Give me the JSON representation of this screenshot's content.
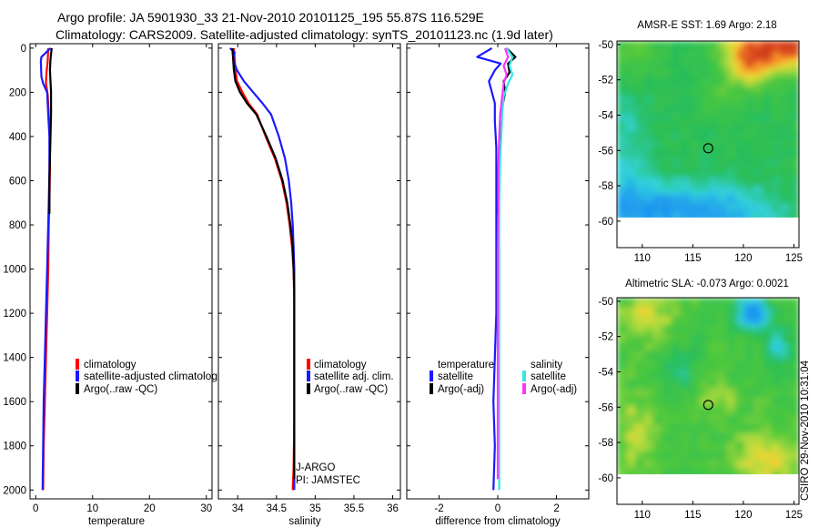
{
  "header": {
    "line1": "Argo profile: JA 5901930_33 21-Nov-2010 20101125_195 55.87S 116.529E",
    "line2": "Climatology: CARS2009. Satellite-adjusted climatology: synTS_20101123.nc (1.9d later)"
  },
  "side_stamp": "CSIRO 29-Nov-2010 10:31:04",
  "colors": {
    "climatology": "#ff0000",
    "satellite": "#1a1aff",
    "argo": "#000000",
    "satellite_salinity": "#33e6e6",
    "argo_salinity": "#ff33ff"
  },
  "chart_data": [
    {
      "type": "line",
      "name": "temperature-profile",
      "xlabel": "temperature",
      "ylabel": "",
      "xlim": [
        -1,
        31
      ],
      "ylim": [
        2040,
        -20
      ],
      "x_ticks": [
        0,
        10,
        20,
        30
      ],
      "y_ticks": [
        0,
        200,
        400,
        600,
        800,
        1000,
        1200,
        1400,
        1600,
        1800,
        2000
      ],
      "series": [
        {
          "name": "climatology",
          "color": "#ff0000",
          "x": [
            2.2,
            2.1,
            1.9,
            1.8,
            2.1,
            2.3,
            2.5,
            2.5,
            2.4,
            2.3,
            2.2,
            2.0,
            1.8,
            1.6,
            1.4,
            1.3
          ],
          "y": [
            0,
            60,
            110,
            160,
            210,
            300,
            400,
            550,
            700,
            800,
            1000,
            1200,
            1400,
            1600,
            1800,
            2000
          ]
        },
        {
          "name": "satellite-adjusted climatology",
          "color": "#1a1aff",
          "x": [
            2.6,
            1.0,
            0.9,
            1.0,
            1.3,
            2.0,
            2.2,
            2.4,
            2.4,
            2.3,
            2.2,
            2.0,
            1.8,
            1.6,
            1.4,
            1.2
          ],
          "y": [
            0,
            40,
            60,
            130,
            160,
            200,
            300,
            400,
            550,
            700,
            800,
            1000,
            1200,
            1400,
            1600,
            2000
          ]
        },
        {
          "name": "Argo(..raw -QC)",
          "color": "#000000",
          "x": [
            2.8,
            2.6,
            2.5,
            2.6,
            2.7,
            2.7,
            2.6,
            2.5,
            2.4,
            2.4
          ],
          "y": [
            0,
            50,
            100,
            150,
            200,
            300,
            400,
            500,
            600,
            750
          ]
        }
      ],
      "legend": [
        "climatology",
        "satellite-adjusted climatolog",
        "Argo(..raw -QC)"
      ]
    },
    {
      "type": "line",
      "name": "salinity-profile",
      "xlabel": "salinity",
      "xlim": [
        33.75,
        36.1
      ],
      "ylim": [
        2040,
        -20
      ],
      "x_ticks": [
        34,
        34.5,
        35,
        35.5,
        36
      ],
      "x_tick_labels": [
        "34",
        "34.5",
        "35",
        "35.5",
        "36"
      ],
      "series": [
        {
          "name": "climatology",
          "color": "#ff0000",
          "x": [
            33.95,
            33.96,
            33.97,
            33.99,
            34.06,
            34.14,
            34.25,
            34.36,
            34.48,
            34.57,
            34.63,
            34.67,
            34.7,
            34.72,
            34.73,
            34.73,
            34.73,
            34.73,
            34.72,
            34.71
          ],
          "y": [
            0,
            50,
            100,
            150,
            200,
            250,
            300,
            400,
            500,
            600,
            700,
            800,
            900,
            1000,
            1150,
            1300,
            1500,
            1700,
            1900,
            2000
          ]
        },
        {
          "name": "satellite adj. clim.",
          "color": "#1a1aff",
          "x": [
            33.9,
            33.96,
            33.94,
            33.99,
            34.08,
            34.2,
            34.32,
            34.43,
            34.53,
            34.61,
            34.66,
            34.69,
            34.71,
            34.72,
            34.73,
            34.73,
            34.73,
            34.73,
            34.73,
            34.73
          ],
          "y": [
            0,
            20,
            50,
            100,
            150,
            200,
            250,
            300,
            400,
            500,
            600,
            700,
            800,
            900,
            1000,
            1200,
            1400,
            1600,
            1800,
            2000
          ]
        },
        {
          "name": "Argo(..raw -QC)",
          "color": "#000000",
          "x": [
            33.93,
            33.94,
            33.95,
            33.97,
            34.03,
            34.12,
            34.24,
            34.37,
            34.49,
            34.58,
            34.64,
            34.68,
            34.71,
            34.72,
            34.73,
            34.73,
            34.73,
            34.73
          ],
          "y": [
            0,
            50,
            100,
            150,
            200,
            250,
            300,
            400,
            500,
            600,
            700,
            800,
            900,
            1000,
            1100,
            1200,
            1600,
            1950
          ]
        }
      ],
      "legend": [
        "climatology",
        "satellite adj. clim.",
        "Argo(..raw -QC)"
      ],
      "annotation": [
        "J-ARGO",
        "PI: JAMSTEC"
      ]
    },
    {
      "type": "line",
      "name": "difference-profile",
      "xlabel": "difference from climatology",
      "xlim": [
        -3.1,
        3.1
      ],
      "ylim": [
        2040,
        -20
      ],
      "x_ticks": [
        -2,
        0,
        2
      ],
      "series": [
        {
          "name": "temperature satellite",
          "color": "#1a1aff",
          "x": [
            -0.2,
            -0.7,
            0.1,
            -0.1,
            -0.3,
            -0.1,
            -0.1,
            -0.05,
            -0.05,
            -0.05,
            -0.05,
            -0.05,
            -0.05,
            -0.1,
            -0.15,
            -0.1,
            -0.15
          ],
          "y": [
            0,
            40,
            70,
            100,
            150,
            250,
            330,
            450,
            550,
            700,
            800,
            1000,
            1200,
            1400,
            1600,
            1800,
            2000
          ]
        },
        {
          "name": "temperature Argo(-adj)",
          "color": "#000000",
          "x": [
            0.3,
            0.6,
            0.35,
            0.4,
            0.2,
            0.25,
            0.15,
            0.1,
            0.05,
            0.05,
            0.0
          ],
          "y": [
            0,
            40,
            70,
            110,
            150,
            200,
            270,
            330,
            450,
            600,
            750
          ]
        },
        {
          "name": "salinity satellite",
          "color": "#33e6e6",
          "x": [
            0.3,
            0.5,
            0.4,
            0.5,
            0.35,
            0.2,
            0.15,
            0.12,
            0.08,
            0.05,
            0.05,
            0.05,
            0.05,
            0.05,
            0.05
          ],
          "y": [
            0,
            40,
            80,
            120,
            160,
            220,
            300,
            400,
            500,
            700,
            900,
            1200,
            1500,
            1800,
            2000
          ]
        },
        {
          "name": "salinity Argo(-adj)",
          "color": "#ff33ff",
          "x": [
            0.25,
            0.35,
            0.2,
            0.3,
            0.2,
            0.15,
            0.08,
            0.05,
            0.02,
            0.02,
            0.0,
            0.0,
            0.0
          ],
          "y": [
            0,
            40,
            80,
            120,
            160,
            220,
            300,
            400,
            550,
            700,
            900,
            1200,
            1950
          ]
        }
      ],
      "legend_temperature": {
        "heading": "temperature",
        "items": [
          "satellite",
          "Argo(-adj)"
        ]
      },
      "legend_salinity": {
        "heading": "salinity",
        "items": [
          "satellite",
          "Argo(-adj)"
        ]
      }
    },
    {
      "type": "heatmap",
      "name": "sst-map",
      "title": "AMSR-E SST: 1.69 Argo: 2.18",
      "xlim": [
        107.5,
        125.5
      ],
      "ylim": [
        -61.5,
        -49.8
      ],
      "x_ticks": [
        110,
        115,
        120,
        125
      ],
      "y_ticks": [
        -50,
        -52,
        -54,
        -56,
        -58,
        -60
      ],
      "data_extent_lat": [
        -60,
        -49.8
      ],
      "float_position": {
        "lon": 116.53,
        "lat": -55.87
      }
    },
    {
      "type": "heatmap",
      "name": "sla-map",
      "title": "Altimetric SLA: -0.073 Argo: 0.0021",
      "xlim": [
        107.5,
        125.5
      ],
      "ylim": [
        -61.5,
        -49.8
      ],
      "x_ticks": [
        110,
        115,
        120,
        125
      ],
      "y_ticks": [
        -50,
        -52,
        -54,
        -56,
        -58,
        -60
      ],
      "data_extent_lat": [
        -60,
        -49.8
      ],
      "float_position": {
        "lon": 116.53,
        "lat": -55.87
      }
    }
  ]
}
